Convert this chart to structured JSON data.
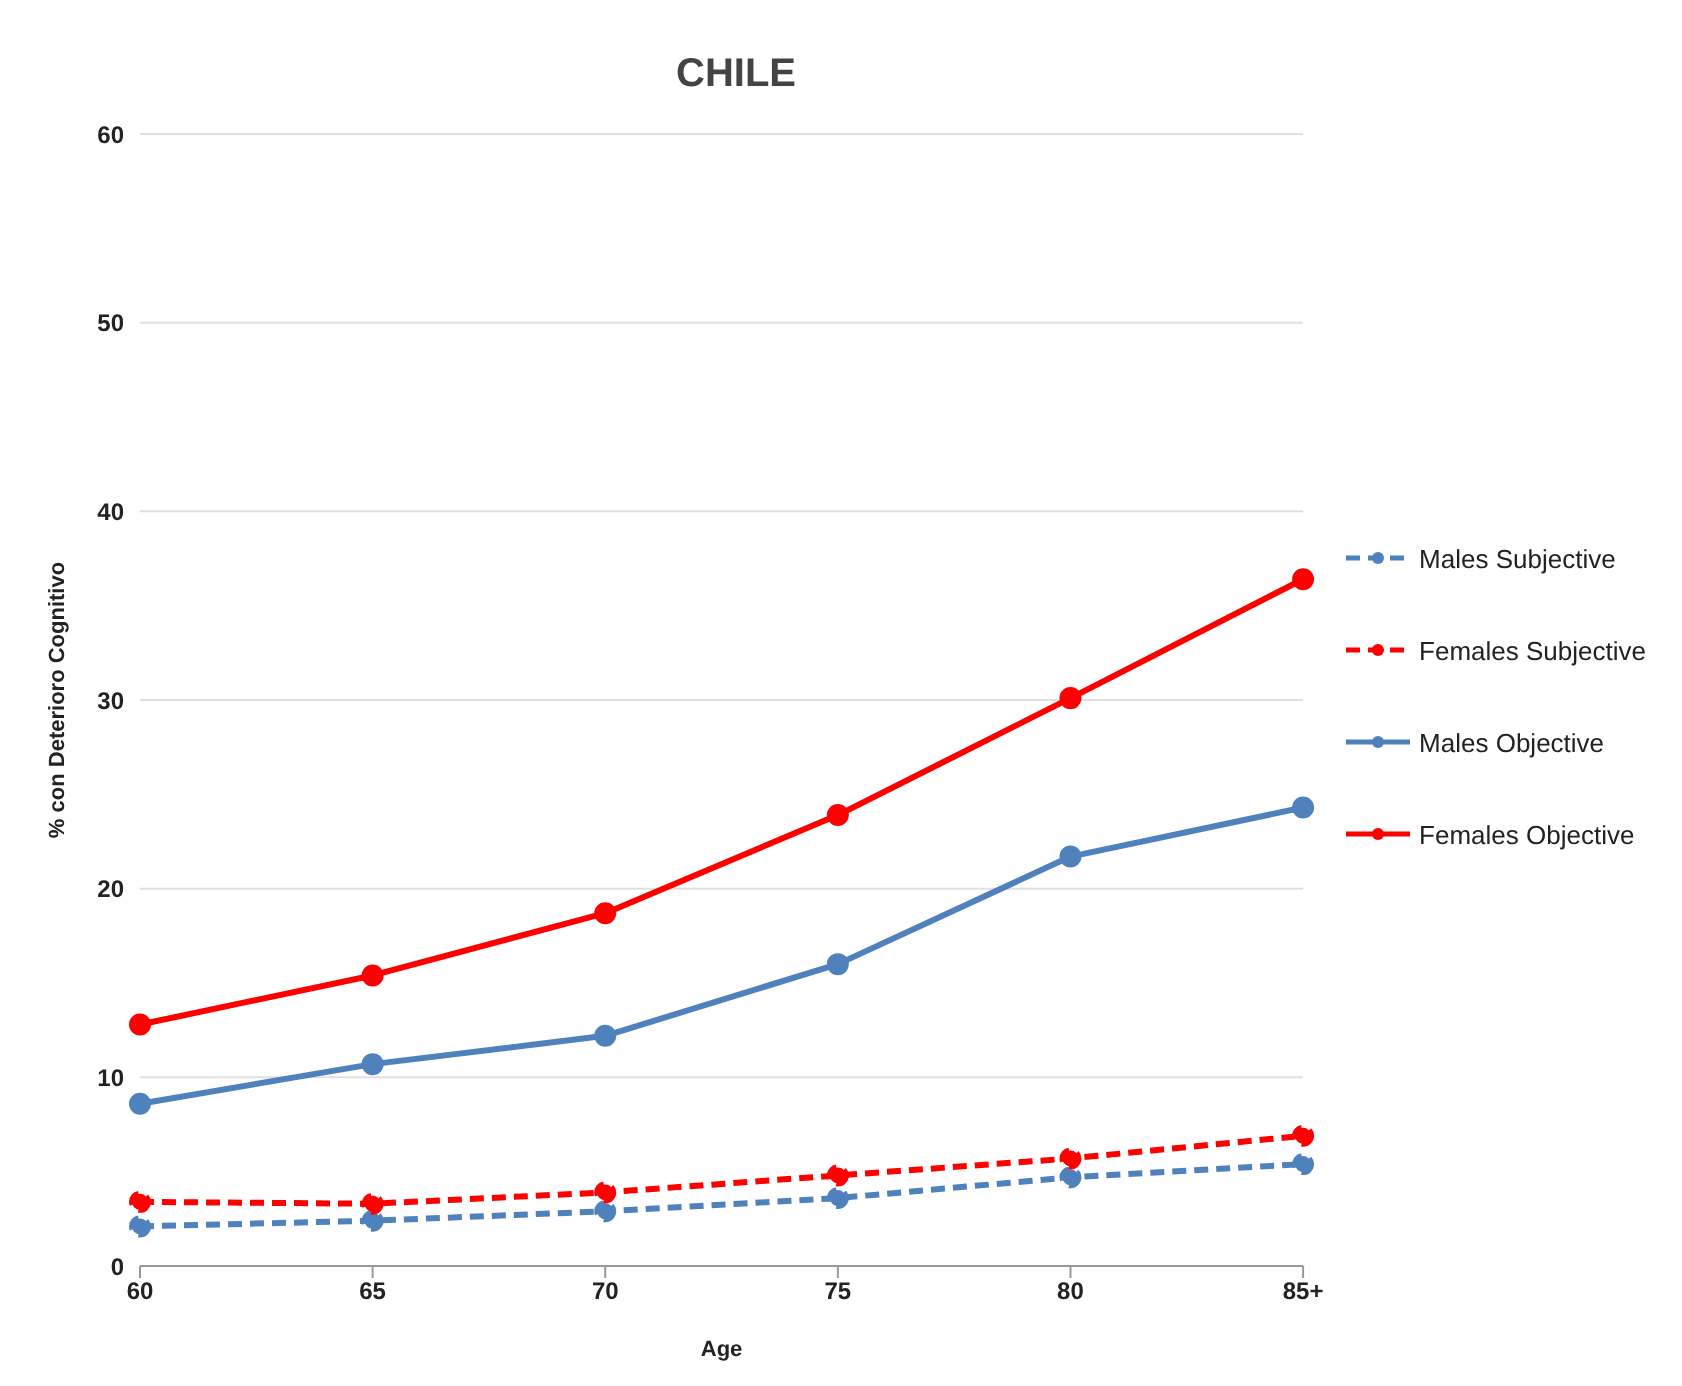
{
  "chart_data": {
    "type": "line",
    "title": "CHILE",
    "xlabel": "Age",
    "ylabel": "% con Deterioro Cognitivo",
    "categories": [
      "60",
      "65",
      "70",
      "75",
      "80",
      "85+"
    ],
    "series": [
      {
        "name": "Males Subjective",
        "color": "#4f81bd",
        "line_style": "dashed",
        "values": [
          2.1,
          2.4,
          2.9,
          3.6,
          4.7,
          5.4
        ]
      },
      {
        "name": "Females Subjective",
        "color": "#ff0000",
        "line_style": "dashed",
        "values": [
          3.4,
          3.3,
          3.9,
          4.8,
          5.7,
          6.9
        ]
      },
      {
        "name": "Males Objective",
        "color": "#4f81bd",
        "line_style": "solid",
        "values": [
          8.6,
          10.7,
          12.2,
          16.0,
          21.7,
          24.3
        ]
      },
      {
        "name": "Females Objective",
        "color": "#ff0000",
        "line_style": "solid",
        "values": [
          12.8,
          15.4,
          18.7,
          23.9,
          30.1,
          36.4
        ]
      }
    ],
    "ylim": [
      0,
      60
    ],
    "yticks": [
      0,
      10,
      20,
      30,
      40,
      50,
      60
    ],
    "grid": "y",
    "legend": "right",
    "marker": "circle"
  }
}
